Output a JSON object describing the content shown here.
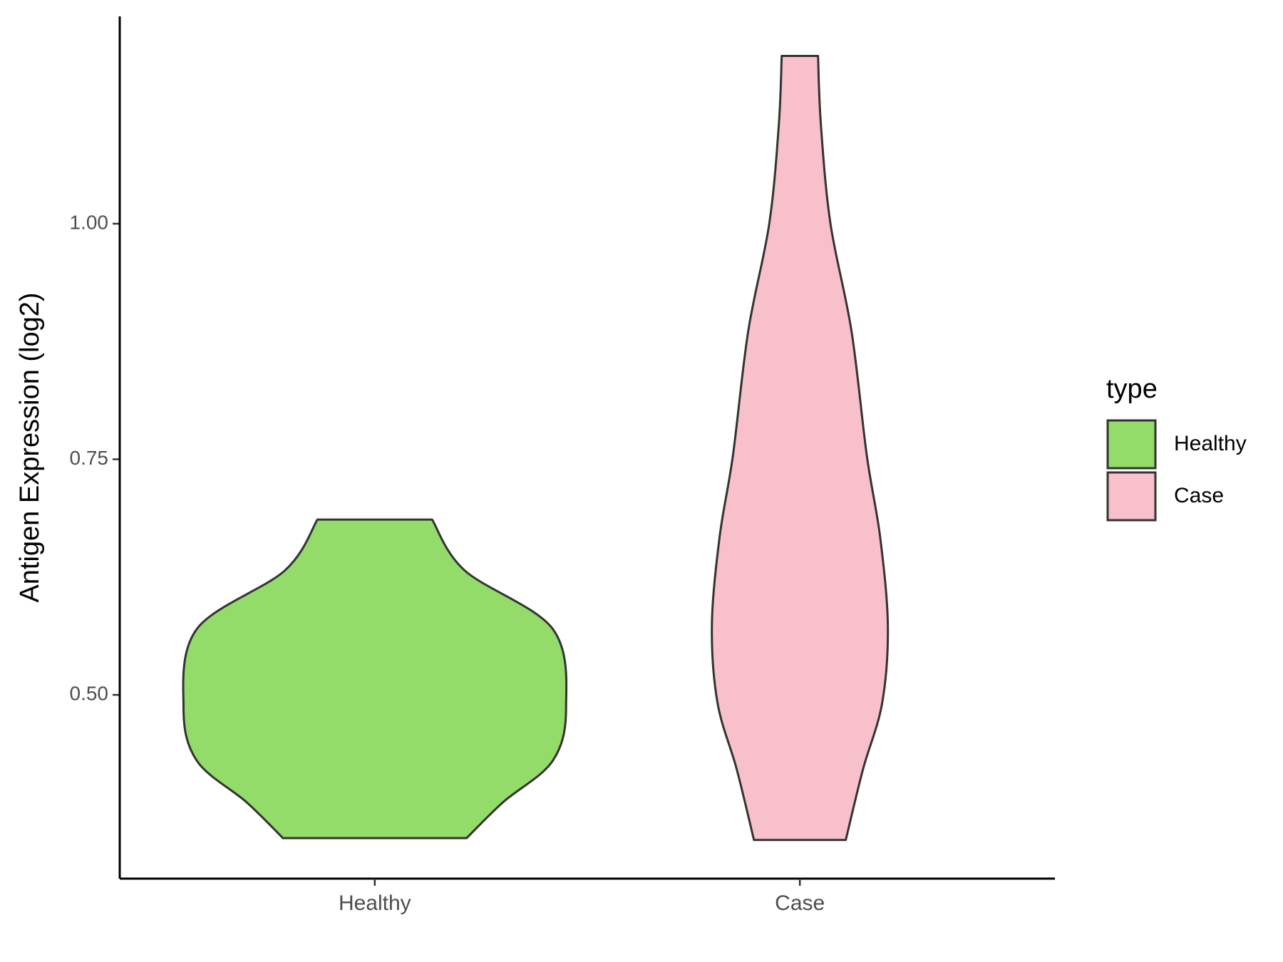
{
  "chart_data": {
    "type": "violin",
    "y_label": "Antigen Expression (log2)",
    "categories": [
      "Healthy",
      "Case"
    ],
    "series": [
      {
        "name": "Healthy",
        "color": "#93dc6a",
        "values": [
          0.686,
          0.632,
          0.57,
          0.487,
          0.43,
          0.386,
          0.348
        ],
        "density": [
          0.3,
          0.47,
          0.93,
          1.0,
          0.93,
          0.67,
          0.48
        ]
      },
      {
        "name": "Case",
        "color": "#f7c0cb",
        "values": [
          1.178,
          1.105,
          1.0,
          0.886,
          0.754,
          0.667,
          0.573,
          0.491,
          0.421,
          0.346
        ],
        "density": [
          0.095,
          0.11,
          0.16,
          0.27,
          0.35,
          0.42,
          0.46,
          0.43,
          0.33,
          0.24
        ]
      }
    ],
    "ylim": [
      0.305,
      1.22
    ],
    "yticks": [
      {
        "value": 0.5,
        "label": "0.50"
      },
      {
        "value": 0.75,
        "label": "0.75"
      },
      {
        "value": 1.0,
        "label": "1.00"
      }
    ],
    "legend_title": "type",
    "legend_position": "right"
  }
}
